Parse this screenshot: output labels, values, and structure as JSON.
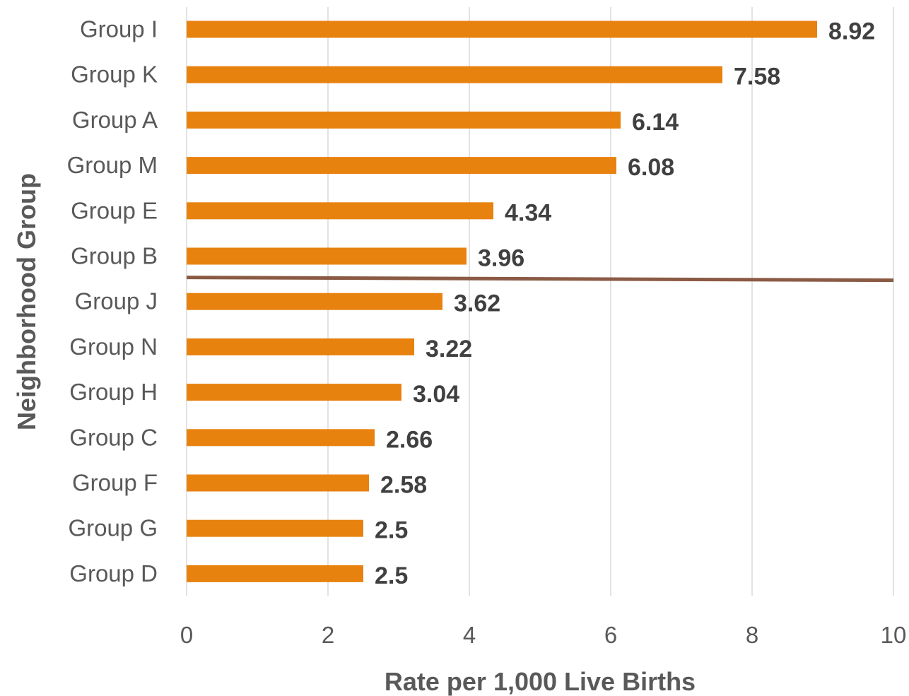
{
  "chart_data": {
    "type": "bar",
    "orientation": "horizontal",
    "categories": [
      "Group I",
      "Group K",
      "Group A",
      "Group M",
      "Group E",
      "Group B",
      "Group J",
      "Group N",
      "Group H",
      "Group C",
      "Group F",
      "Group G",
      "Group D"
    ],
    "values": [
      8.92,
      7.58,
      6.14,
      6.08,
      4.34,
      3.96,
      3.62,
      3.22,
      3.04,
      2.66,
      2.58,
      2.5,
      2.5
    ],
    "data_labels": [
      "8.92",
      "7.58",
      "6.14",
      "6.08",
      "4.34",
      "3.96",
      "3.62",
      "3.22",
      "3.04",
      "2.66",
      "2.58",
      "2.5",
      "2.5"
    ],
    "xlabel": "Rate per 1,000 Live Births",
    "ylabel": "Neighborhood Group",
    "xlim": [
      0,
      10
    ],
    "xticks": [
      "0",
      "2",
      "4",
      "6",
      "8",
      "10"
    ],
    "grid": "vertical",
    "legend": "none",
    "reference_line": {
      "position_between": [
        "Group B",
        "Group J"
      ]
    },
    "colors": {
      "bar": "#E8820F",
      "reference_line": "#8B5A44",
      "grid": "#D9D9D9",
      "label_text": "#595959",
      "value_text": "#404040"
    }
  }
}
